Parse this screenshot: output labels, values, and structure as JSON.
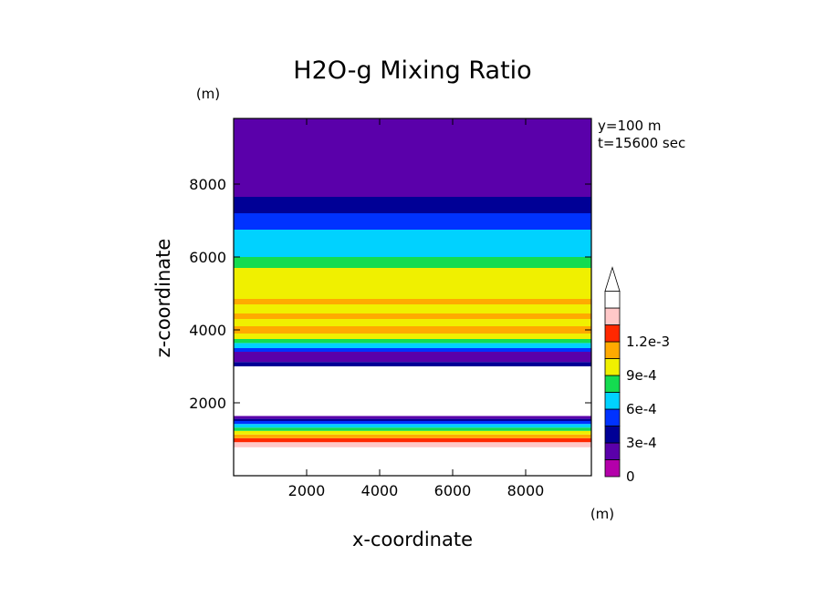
{
  "chart_data": {
    "type": "heatmap",
    "title": "H2O-g Mixing Ratio",
    "xlabel": "x-coordinate",
    "ylabel": "z-coordinate",
    "x_unit": "(m)",
    "y_unit": "(m)",
    "annotations": [
      "y=100 m",
      "t=15600 sec"
    ],
    "xlim": [
      0,
      9800
    ],
    "ylim": [
      0,
      9800
    ],
    "x_ticks": [
      2000,
      4000,
      6000,
      8000
    ],
    "x_tick_labels": [
      "2000",
      "4000",
      "6000",
      "8000"
    ],
    "y_ticks": [
      2000,
      4000,
      6000,
      8000
    ],
    "y_tick_labels": [
      "2000",
      "4000",
      "6000",
      "8000"
    ],
    "colorbar": {
      "levels": [
        0,
        0.00015,
        0.0003,
        0.00045,
        0.0006,
        0.00075,
        0.0009,
        0.00105,
        0.0012,
        0.00135
      ],
      "colors": [
        "#b400aa",
        "#5a00aa",
        "#000096",
        "#0032ff",
        "#00d2ff",
        "#14dc50",
        "#f0f000",
        "#ffaa00",
        "#ff2800",
        "#ffc8c8",
        "#ffffff"
      ],
      "labels": [
        "0",
        "3e-4",
        "6e-4",
        "9e-4",
        "1.2e-3"
      ],
      "label_values": [
        0,
        0.0003,
        0.0006,
        0.0009,
        0.0012
      ],
      "extend": "max"
    },
    "bands": [
      {
        "z0": 0,
        "z1": 780,
        "value": 0.0014
      },
      {
        "z0": 780,
        "z1": 920,
        "value": 0.00125
      },
      {
        "z0": 920,
        "z1": 1030,
        "value": 0.0011
      },
      {
        "z0": 1030,
        "z1": 1130,
        "value": 0.00095
      },
      {
        "z0": 1130,
        "z1": 1230,
        "value": 0.0008
      },
      {
        "z0": 1230,
        "z1": 1320,
        "value": 0.00065
      },
      {
        "z0": 1320,
        "z1": 1420,
        "value": 0.0005
      },
      {
        "z0": 1420,
        "z1": 1500,
        "value": 0.00035
      },
      {
        "z0": 1500,
        "z1": 1560,
        "value": 0.0002
      },
      {
        "z0": 1560,
        "z1": 1640,
        "value": 5e-05
      },
      {
        "z0": 1640,
        "z1": 3000,
        "value": 0.0016
      },
      {
        "z0": 3000,
        "z1": 3120,
        "value": 0.00025
      },
      {
        "z0": 3120,
        "z1": 3400,
        "value": 0.0001
      },
      {
        "z0": 3400,
        "z1": 3500,
        "value": 0.00035
      },
      {
        "z0": 3500,
        "z1": 3640,
        "value": 0.0005
      },
      {
        "z0": 3640,
        "z1": 3750,
        "value": 0.00065
      },
      {
        "z0": 3750,
        "z1": 3900,
        "value": 0.0008
      },
      {
        "z0": 3900,
        "z1": 4100,
        "value": 0.00092
      },
      {
        "z0": 4100,
        "z1": 4300,
        "value": 0.0008
      },
      {
        "z0": 4300,
        "z1": 4450,
        "value": 0.00093
      },
      {
        "z0": 4450,
        "z1": 4700,
        "value": 0.0008
      },
      {
        "z0": 4700,
        "z1": 4850,
        "value": 0.00093
      },
      {
        "z0": 4850,
        "z1": 5300,
        "value": 0.0008
      },
      {
        "z0": 5300,
        "z1": 5700,
        "value": 0.0008
      },
      {
        "z0": 5700,
        "z1": 6000,
        "value": 0.00065
      },
      {
        "z0": 6000,
        "z1": 6250,
        "value": 0.0005
      },
      {
        "z0": 6250,
        "z1": 6750,
        "value": 0.0005
      },
      {
        "z0": 6750,
        "z1": 7200,
        "value": 0.00035
      },
      {
        "z0": 7200,
        "z1": 7650,
        "value": 0.0002
      },
      {
        "z0": 7650,
        "z1": 8200,
        "value": 5e-05
      },
      {
        "z0": 8200,
        "z1": 8900,
        "value": 0.0001
      },
      {
        "z0": 8900,
        "z1": 9800,
        "value": 2e-05
      }
    ]
  }
}
